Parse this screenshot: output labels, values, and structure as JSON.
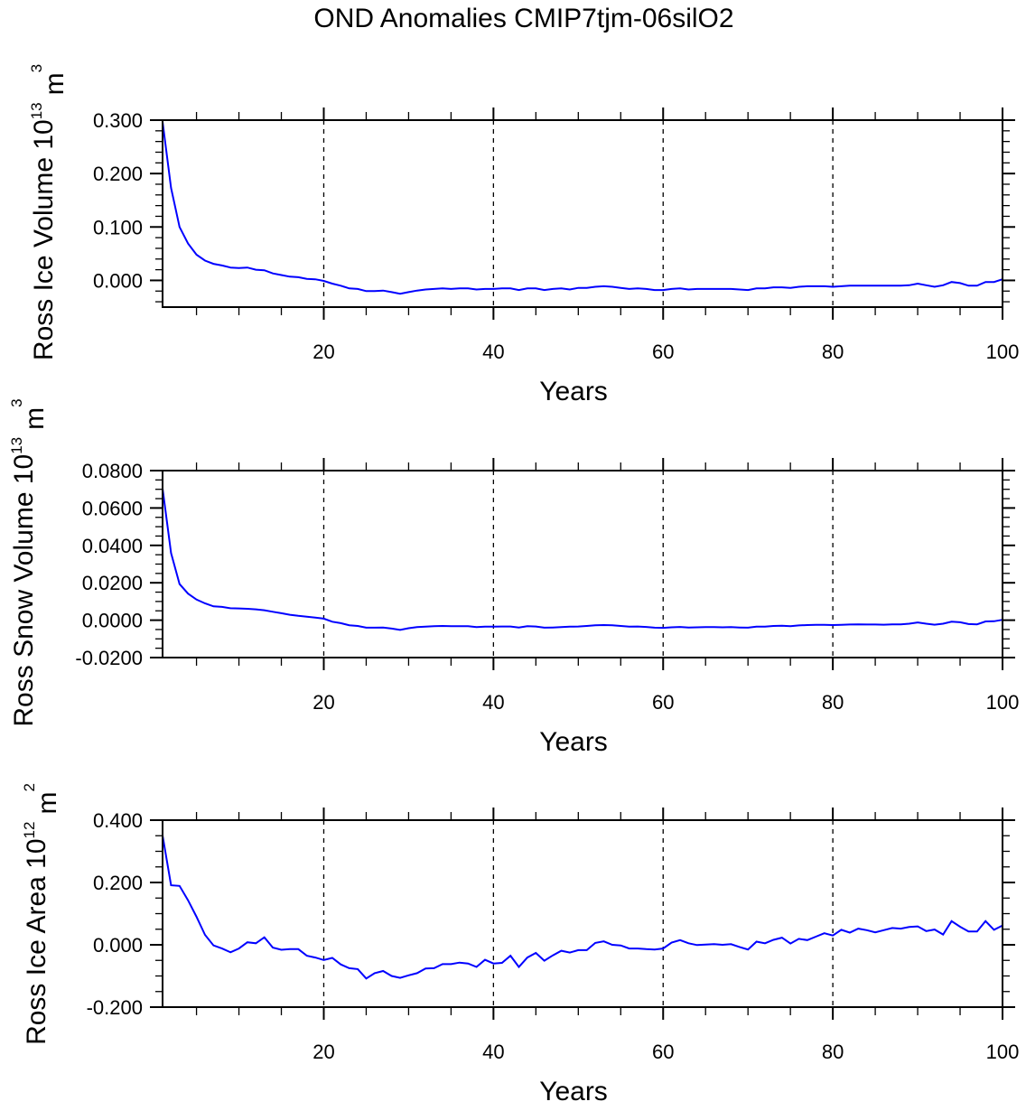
{
  "chart_data": {
    "title": "OND Anomalies CMIP7tjm-06silO2",
    "type": "line",
    "line_color": "#0000ff",
    "panels": [
      {
        "type": "line",
        "ylabel": "Ross Ice Volume 10",
        "ylabel_exp": "13",
        "ylabel_unit": "m",
        "ylabel_unit_exp": "3",
        "xlabel": "Years",
        "xlim": [
          1,
          100
        ],
        "ylim": [
          -0.05,
          0.3
        ],
        "xticks": [
          20,
          40,
          60,
          80,
          100
        ],
        "xtick_labels": [
          "20",
          "40",
          "60",
          "80",
          "100"
        ],
        "yticks": [
          0.0,
          0.1,
          0.2,
          0.3
        ],
        "ytick_labels": [
          "0.000",
          "0.100",
          "0.200",
          "0.300"
        ],
        "yminor_step": 0.02,
        "grid": "vertical dashed at 20,40,60,80",
        "values": [
          0.297,
          0.173,
          0.1,
          0.069,
          0.048,
          0.037,
          0.031,
          0.028,
          0.024,
          0.023,
          0.024,
          0.02,
          0.019,
          0.013,
          0.01,
          0.007,
          0.006,
          0.003,
          0.002,
          -0.001,
          -0.006,
          -0.01,
          -0.015,
          -0.016,
          -0.02,
          -0.02,
          -0.019,
          -0.022,
          -0.025,
          -0.022,
          -0.019,
          -0.017,
          -0.016,
          -0.015,
          -0.016,
          -0.015,
          -0.015,
          -0.017,
          -0.016,
          -0.016,
          -0.015,
          -0.015,
          -0.018,
          -0.015,
          -0.015,
          -0.018,
          -0.016,
          -0.015,
          -0.017,
          -0.014,
          -0.014,
          -0.012,
          -0.011,
          -0.012,
          -0.014,
          -0.016,
          -0.015,
          -0.016,
          -0.018,
          -0.018,
          -0.016,
          -0.015,
          -0.017,
          -0.016,
          -0.016,
          -0.016,
          -0.016,
          -0.016,
          -0.017,
          -0.018,
          -0.015,
          -0.015,
          -0.013,
          -0.013,
          -0.014,
          -0.012,
          -0.011,
          -0.011,
          -0.011,
          -0.012,
          -0.011,
          -0.01,
          -0.01,
          -0.01,
          -0.01,
          -0.01,
          -0.01,
          -0.01,
          -0.009,
          -0.006,
          -0.009,
          -0.012,
          -0.009,
          -0.003,
          -0.005,
          -0.01,
          -0.01,
          -0.003,
          -0.003,
          0.002
        ]
      },
      {
        "type": "line",
        "ylabel": "Ross Snow Volume 10",
        "ylabel_exp": "13",
        "ylabel_unit": "m",
        "ylabel_unit_exp": "3",
        "xlabel": "Years",
        "xlim": [
          1,
          100
        ],
        "ylim": [
          -0.02,
          0.08
        ],
        "xticks": [
          20,
          40,
          60,
          80,
          100
        ],
        "xtick_labels": [
          "20",
          "40",
          "60",
          "80",
          "100"
        ],
        "yticks": [
          -0.02,
          0.0,
          0.02,
          0.04,
          0.06,
          0.08
        ],
        "ytick_labels": [
          "-0.0200",
          "0.0000",
          "0.0200",
          "0.0400",
          "0.0600",
          "0.0800"
        ],
        "yminor_step": 0.005,
        "grid": "vertical dashed at 20,40,60,80",
        "values": [
          0.0705,
          0.0359,
          0.0193,
          0.0142,
          0.011,
          0.009,
          0.0074,
          0.0071,
          0.0064,
          0.0063,
          0.0061,
          0.0058,
          0.0053,
          0.0045,
          0.0037,
          0.0029,
          0.0023,
          0.0019,
          0.0014,
          0.0008,
          -0.0008,
          -0.0016,
          -0.0027,
          -0.0031,
          -0.004,
          -0.004,
          -0.0039,
          -0.0045,
          -0.0052,
          -0.0043,
          -0.0037,
          -0.0035,
          -0.0032,
          -0.0031,
          -0.0032,
          -0.0032,
          -0.0032,
          -0.0037,
          -0.0035,
          -0.0035,
          -0.0034,
          -0.0034,
          -0.0039,
          -0.0032,
          -0.0034,
          -0.004,
          -0.0039,
          -0.0037,
          -0.0035,
          -0.0034,
          -0.0031,
          -0.0027,
          -0.0026,
          -0.0027,
          -0.0031,
          -0.0035,
          -0.0034,
          -0.0036,
          -0.004,
          -0.0041,
          -0.0038,
          -0.0036,
          -0.0039,
          -0.0038,
          -0.0037,
          -0.0037,
          -0.0038,
          -0.0037,
          -0.0039,
          -0.004,
          -0.0035,
          -0.0035,
          -0.0031,
          -0.003,
          -0.0032,
          -0.0028,
          -0.0026,
          -0.0025,
          -0.0025,
          -0.0026,
          -0.0025,
          -0.0023,
          -0.0022,
          -0.0023,
          -0.0023,
          -0.0024,
          -0.0022,
          -0.0022,
          -0.0019,
          -0.0012,
          -0.0019,
          -0.0024,
          -0.0019,
          -0.0008,
          -0.0011,
          -0.0021,
          -0.0022,
          -0.0007,
          -0.0006,
          0.0002
        ]
      },
      {
        "type": "line",
        "ylabel": "Ross Ice Area 10",
        "ylabel_exp": "12",
        "ylabel_unit": "m",
        "ylabel_unit_exp": "2",
        "xlabel": "Years",
        "xlim": [
          1,
          100
        ],
        "ylim": [
          -0.2,
          0.4
        ],
        "xticks": [
          20,
          40,
          60,
          80,
          100
        ],
        "xtick_labels": [
          "20",
          "40",
          "60",
          "80",
          "100"
        ],
        "yticks": [
          -0.2,
          0.0,
          0.2,
          0.4
        ],
        "ytick_labels": [
          "-0.200",
          "0.000",
          "0.200",
          "0.400"
        ],
        "yminor_step": 0.05,
        "grid": "vertical dashed at 20,40,60,80",
        "values": [
          0.351,
          0.191,
          0.189,
          0.143,
          0.09,
          0.032,
          -0.002,
          -0.012,
          -0.024,
          -0.012,
          0.008,
          0.005,
          0.024,
          -0.009,
          -0.016,
          -0.014,
          -0.014,
          -0.035,
          -0.041,
          -0.049,
          -0.042,
          -0.063,
          -0.075,
          -0.078,
          -0.108,
          -0.091,
          -0.084,
          -0.1,
          -0.106,
          -0.098,
          -0.091,
          -0.076,
          -0.075,
          -0.062,
          -0.062,
          -0.057,
          -0.06,
          -0.071,
          -0.048,
          -0.06,
          -0.058,
          -0.035,
          -0.071,
          -0.041,
          -0.026,
          -0.051,
          -0.034,
          -0.019,
          -0.025,
          -0.017,
          -0.017,
          0.006,
          0.011,
          0.0,
          -0.002,
          -0.012,
          -0.012,
          -0.014,
          -0.015,
          -0.012,
          0.007,
          0.015,
          0.005,
          -0.001,
          0.001,
          0.002,
          0.0,
          0.002,
          -0.007,
          -0.015,
          0.01,
          0.005,
          0.016,
          0.023,
          0.004,
          0.019,
          0.015,
          0.026,
          0.037,
          0.03,
          0.048,
          0.039,
          0.052,
          0.047,
          0.04,
          0.047,
          0.054,
          0.052,
          0.057,
          0.059,
          0.044,
          0.049,
          0.033,
          0.076,
          0.058,
          0.043,
          0.043,
          0.076,
          0.048,
          0.062
        ]
      }
    ]
  }
}
